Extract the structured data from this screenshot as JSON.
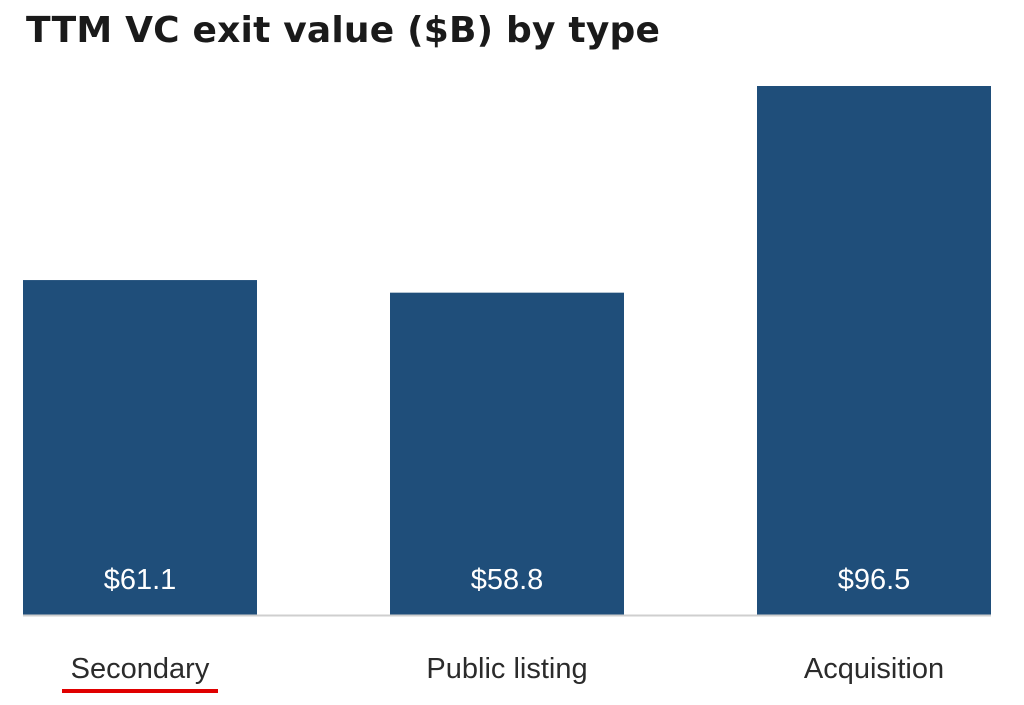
{
  "chart_data": {
    "type": "bar",
    "title": "TTM VC exit value ($B) by type",
    "categories": [
      "Secondary",
      "Public listing",
      "Acquisition"
    ],
    "values": [
      61.1,
      58.8,
      96.5
    ],
    "data_labels": [
      "$61.1",
      "$58.8",
      "$96.5"
    ],
    "xlabel": "",
    "ylabel": "",
    "ylim": [
      0,
      96.5
    ],
    "grid": false,
    "legend": "none",
    "highlighted_category": "Secondary"
  },
  "colors": {
    "bar": "#1f4e7a",
    "value_label": "#ffffff",
    "category_label": "#2b2b2b",
    "title": "#1a1a1a",
    "baseline": "#cfcfcf",
    "highlight_underline": "#e00000"
  }
}
